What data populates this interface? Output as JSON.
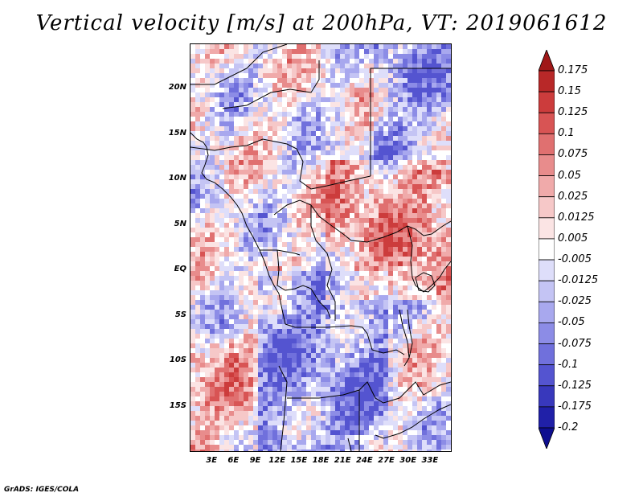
{
  "title": "Vertical velocity [m/s] at 200hPa, VT: 2019061612",
  "credit": "GrADS: IGES/COLA",
  "map": {
    "variable": "Vertical velocity",
    "units": "m/s",
    "level": "200hPa",
    "valid_time": "2019061612",
    "lat_range": [
      -20,
      25
    ],
    "lon_range": [
      0,
      36
    ],
    "lat_labels": [
      {
        "text": "20N",
        "lat": 20
      },
      {
        "text": "15N",
        "lat": 15
      },
      {
        "text": "10N",
        "lat": 10
      },
      {
        "text": "5N",
        "lat": 5
      },
      {
        "text": "EQ",
        "lat": 0
      },
      {
        "text": "5S",
        "lat": -5
      },
      {
        "text": "10S",
        "lat": -10
      },
      {
        "text": "15S",
        "lat": -15
      }
    ],
    "lon_labels": [
      {
        "text": "3E",
        "lon": 3
      },
      {
        "text": "6E",
        "lon": 6
      },
      {
        "text": "9E",
        "lon": 9
      },
      {
        "text": "12E",
        "lon": 12
      },
      {
        "text": "15E",
        "lon": 15
      },
      {
        "text": "18E",
        "lon": 18
      },
      {
        "text": "21E",
        "lon": 21
      },
      {
        "text": "24E",
        "lon": 24
      },
      {
        "text": "27E",
        "lon": 27
      },
      {
        "text": "30E",
        "lon": 30
      },
      {
        "text": "33E",
        "lon": 33
      }
    ]
  },
  "colorbar": {
    "labels": [
      "0.175",
      "0.15",
      "0.125",
      "0.1",
      "0.075",
      "0.05",
      "0.025",
      "0.0125",
      "0.005",
      "-0.005",
      "-0.0125",
      "-0.025",
      "-0.05",
      "-0.075",
      "-0.1",
      "-0.125",
      "-0.175",
      "-0.2"
    ],
    "colors": [
      "#a01818",
      "#b82828",
      "#cc3c3c",
      "#d85454",
      "#e07070",
      "#e88c8c",
      "#f0aaaa",
      "#f6c8c8",
      "#fbe4e4",
      "#ffffff",
      "#dedefa",
      "#c4c4f4",
      "#a8a8ee",
      "#8c8ce6",
      "#7070dc",
      "#5454d0",
      "#3838bc",
      "#2020a8",
      "#0e0e90"
    ]
  }
}
